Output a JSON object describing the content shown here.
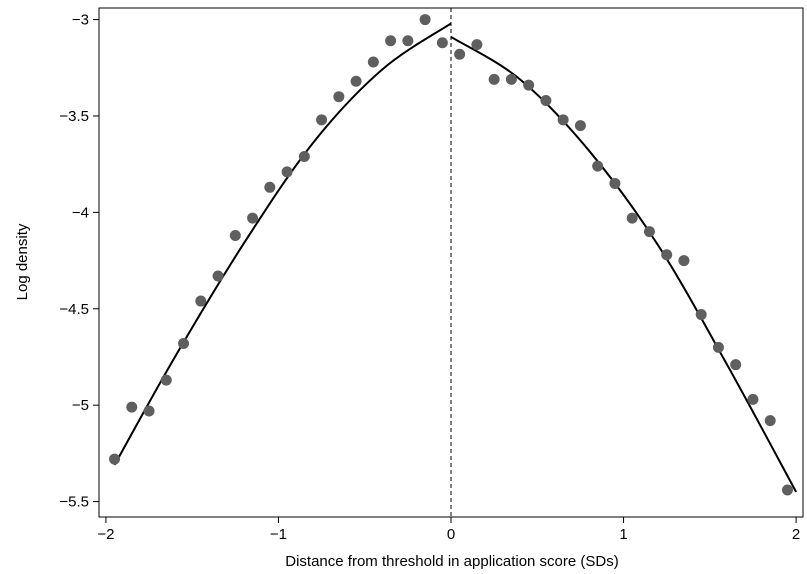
{
  "chart_data": {
    "type": "scatter",
    "xlabel": "Distance from threshold in application score (SDs)",
    "ylabel": "Log density",
    "xlim": [
      -2.04,
      2.04
    ],
    "ylim": [
      -5.58,
      -2.94
    ],
    "xticks": [
      -2,
      -1,
      0,
      1,
      2
    ],
    "yticks": [
      -3,
      -3.5,
      -4,
      -4.5,
      -5,
      -5.5
    ],
    "xtick_labels": [
      "−2",
      "−1",
      "0",
      "1",
      "2"
    ],
    "ytick_labels": [
      "−3",
      "−3.5",
      "−4",
      "−4.5",
      "−5",
      "−5.5"
    ],
    "threshold_line": {
      "x": 0,
      "style": "dashed"
    },
    "grid": false,
    "legend": "none",
    "points": {
      "x": [
        -1.95,
        -1.85,
        -1.75,
        -1.65,
        -1.55,
        -1.45,
        -1.35,
        -1.25,
        -1.15,
        -1.05,
        -0.95,
        -0.85,
        -0.75,
        -0.65,
        -0.55,
        -0.45,
        -0.35,
        -0.25,
        -0.15,
        -0.05,
        0.05,
        0.15,
        0.25,
        0.35,
        0.45,
        0.55,
        0.65,
        0.75,
        0.85,
        0.95,
        1.05,
        1.15,
        1.25,
        1.35,
        1.45,
        1.55,
        1.65,
        1.75,
        1.85,
        1.95
      ],
      "y": [
        -5.28,
        -5.01,
        -5.03,
        -4.87,
        -4.68,
        -4.46,
        -4.33,
        -4.12,
        -4.03,
        -3.87,
        -3.79,
        -3.71,
        -3.52,
        -3.4,
        -3.32,
        -3.22,
        -3.11,
        -3.11,
        -3.0,
        -3.12,
        -3.18,
        -3.13,
        -3.31,
        -3.31,
        -3.34,
        -3.42,
        -3.52,
        -3.55,
        -3.76,
        -3.85,
        -4.03,
        -4.1,
        -4.22,
        -4.25,
        -4.53,
        -4.7,
        -4.79,
        -4.97,
        -5.08,
        -5.44
      ]
    },
    "fit_left": {
      "x": [
        -1.95,
        -1.6,
        -1.2,
        -0.8,
        -0.4,
        0
      ],
      "y": [
        -5.31,
        -4.75,
        -4.16,
        -3.64,
        -3.26,
        -3.02
      ]
    },
    "fit_right": {
      "x": [
        0,
        0.4,
        0.8,
        1.2,
        1.6,
        2.0
      ],
      "y": [
        -3.09,
        -3.31,
        -3.68,
        -4.17,
        -4.79,
        -5.45
      ]
    },
    "colors": {
      "points": "#5f5f5f",
      "line": "#000000"
    }
  }
}
